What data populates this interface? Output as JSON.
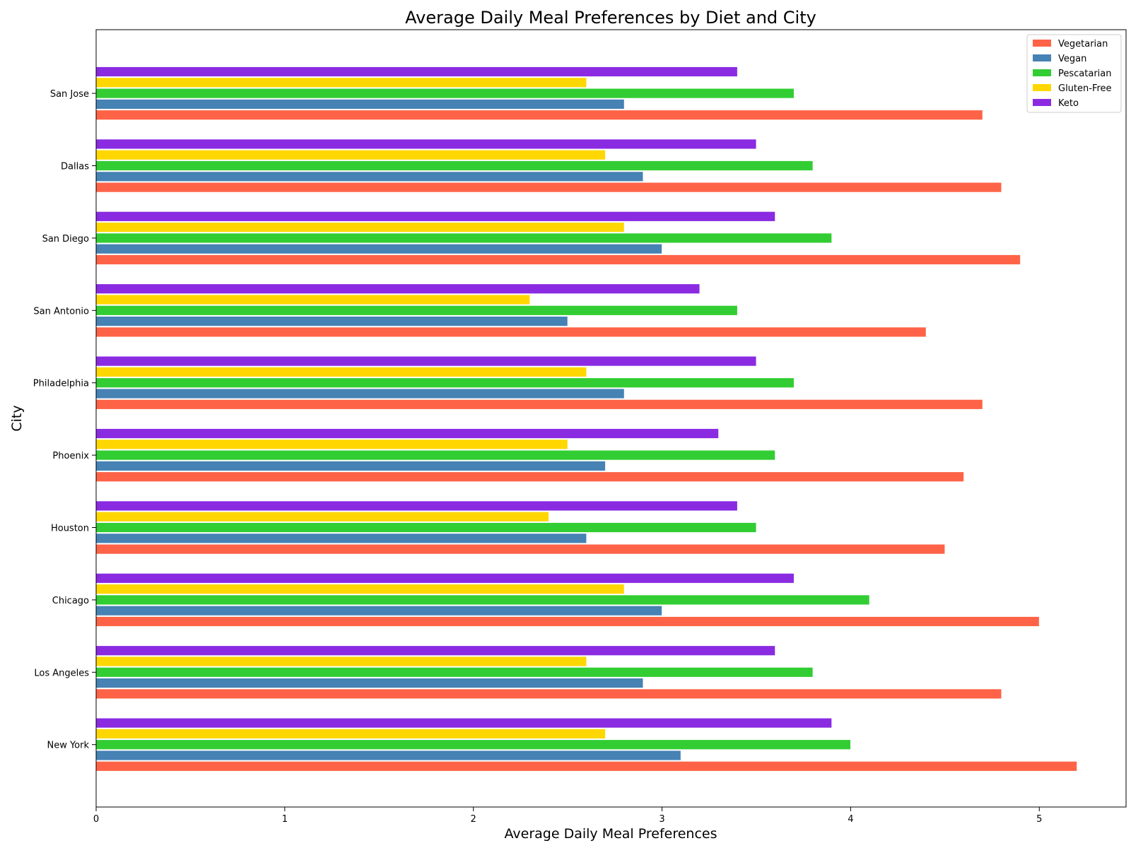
{
  "chart_data": {
    "type": "bar",
    "orientation": "horizontal",
    "title": "Average Daily Meal Preferences by Diet and City",
    "xlabel": "Average Daily Meal Preferences",
    "ylabel": "City",
    "xlim": [
      0,
      5.46
    ],
    "xticks": [
      "0",
      "1",
      "2",
      "3",
      "4",
      "5"
    ],
    "grid": false,
    "legend_position": "top-right",
    "categories": [
      "New York",
      "Los Angeles",
      "Chicago",
      "Houston",
      "Phoenix",
      "Philadelphia",
      "San Antonio",
      "San Diego",
      "Dallas",
      "San Jose"
    ],
    "series": [
      {
        "name": "Vegetarian",
        "color": "#FF6347",
        "values": [
          5.2,
          4.8,
          5.0,
          4.5,
          4.6,
          4.7,
          4.4,
          4.9,
          4.8,
          4.7
        ]
      },
      {
        "name": "Vegan",
        "color": "#4682B4",
        "values": [
          3.1,
          2.9,
          3.0,
          2.6,
          2.7,
          2.8,
          2.5,
          3.0,
          2.9,
          2.8
        ]
      },
      {
        "name": "Pescatarian",
        "color": "#32CD32",
        "values": [
          4.0,
          3.8,
          4.1,
          3.5,
          3.6,
          3.7,
          3.4,
          3.9,
          3.8,
          3.7
        ]
      },
      {
        "name": "Gluten-Free",
        "color": "#FFD700",
        "values": [
          2.7,
          2.6,
          2.8,
          2.4,
          2.5,
          2.6,
          2.3,
          2.8,
          2.7,
          2.6
        ]
      },
      {
        "name": "Keto",
        "color": "#8A2BE2",
        "values": [
          3.9,
          3.6,
          3.7,
          3.4,
          3.3,
          3.5,
          3.2,
          3.6,
          3.5,
          3.4
        ]
      }
    ]
  }
}
